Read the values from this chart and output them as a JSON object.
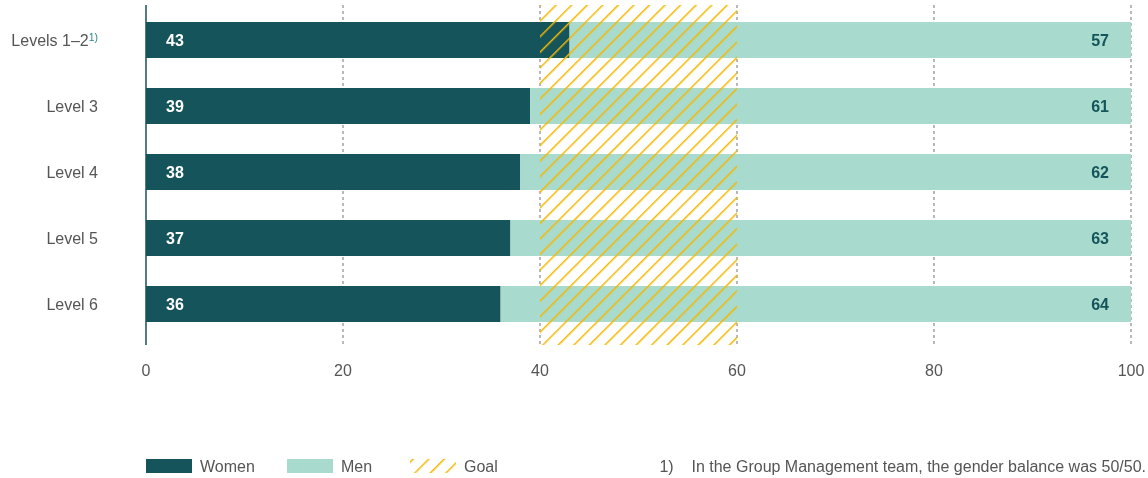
{
  "chart_data": {
    "type": "bar",
    "orientation": "horizontal",
    "stacked": true,
    "categories": [
      "Levels 1–2$^{1)}$",
      "Level 3",
      "Level 4",
      "Level 5",
      "Level 6"
    ],
    "series": [
      {
        "name": "Women",
        "color": "#15545a",
        "values": [
          43,
          39,
          38,
          37,
          36
        ]
      },
      {
        "name": "Men",
        "color": "#a8dacd",
        "values": [
          57,
          61,
          62,
          63,
          64
        ]
      }
    ],
    "xlim": [
      0,
      100
    ],
    "xticks": [
      0,
      20,
      40,
      60,
      80,
      100
    ],
    "grid": "x",
    "data_labels": true,
    "legend": "bottom left",
    "bands": [
      {
        "axis": "x",
        "from": 40,
        "to": 60,
        "label": "Goal",
        "color": "#f5b800"
      }
    ],
    "annotations": [
      "1)    In the Group Management team, the gender balance was 50/50."
    ]
  }
}
